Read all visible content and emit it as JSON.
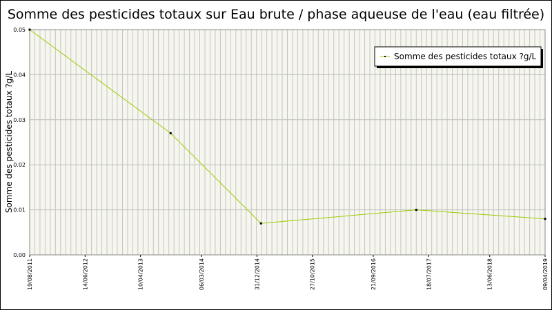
{
  "chart_data": {
    "type": "line",
    "title": "Somme des pesticides totaux sur Eau brute / phase aqueuse de l'eau (eau filtrée)",
    "xlabel": "",
    "ylabel": "Somme des pesticides totaux ?g/L",
    "x_axis_type": "date",
    "xlim": [
      "2011-08-19",
      "2019-04-09"
    ],
    "ylim": [
      0,
      0.05
    ],
    "x_tick_labels": [
      "19/08/2011",
      "14/06/2012",
      "10/04/2013",
      "06/03/2014",
      "31/12/2014",
      "27/10/2015",
      "21/09/2016",
      "18/07/2017",
      "13/06/2018",
      "09/04/2019"
    ],
    "x_tick_dates": [
      "2011-08-19",
      "2012-06-14",
      "2013-04-10",
      "2014-03-06",
      "2014-12-31",
      "2015-10-27",
      "2016-09-21",
      "2017-07-18",
      "2018-06-13",
      "2019-04-09"
    ],
    "y_ticks": [
      "0.00",
      "0.01",
      "0.02",
      "0.03",
      "0.04",
      "0.05"
    ],
    "grid": true,
    "legend_position": "top-right",
    "series": [
      {
        "name": "Somme des pesticides totaux ?g/L",
        "color": "#99cc00",
        "marker_color": "#000000",
        "points": [
          {
            "x": "2011-08-19",
            "y": 0.05
          },
          {
            "x": "2013-09-20",
            "y": 0.027
          },
          {
            "x": "2015-01-22",
            "y": 0.007
          },
          {
            "x": "2017-05-12",
            "y": 0.01
          },
          {
            "x": "2019-04-09",
            "y": 0.008
          }
        ]
      }
    ]
  }
}
